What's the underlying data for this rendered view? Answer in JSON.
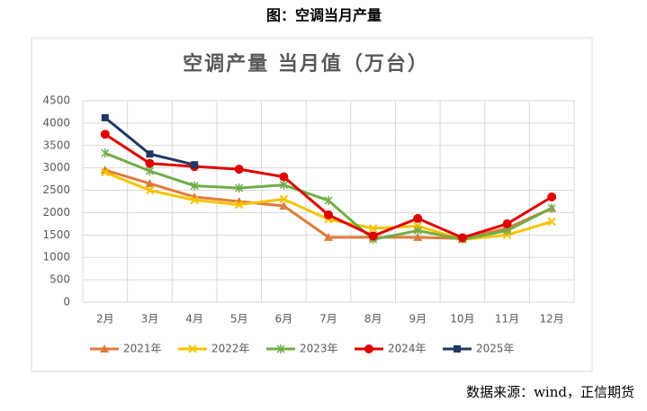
{
  "header": "图：空调当月产量",
  "source": "数据来源：wind，正信期货",
  "chart_data": {
    "type": "line",
    "title": "空调产量 当月值（万台）",
    "categories": [
      "2月",
      "3月",
      "4月",
      "5月",
      "6月",
      "7月",
      "8月",
      "9月",
      "10月",
      "11月",
      "12月"
    ],
    "ylim": [
      0,
      4500
    ],
    "yticks": [
      0,
      500,
      1000,
      1500,
      2000,
      2500,
      3000,
      3500,
      4000,
      4500
    ],
    "grid": true,
    "series": [
      {
        "name": "2021年",
        "color": "#e07b39",
        "marker": "triangle",
        "values": [
          2950,
          2650,
          2350,
          2250,
          2150,
          1450,
          1450,
          1450,
          1420,
          1650,
          2100
        ]
      },
      {
        "name": "2022年",
        "color": "#f5c400",
        "marker": "cross",
        "values": [
          2900,
          2500,
          2280,
          2180,
          2300,
          1850,
          1650,
          1700,
          1400,
          1500,
          1800
        ]
      },
      {
        "name": "2023年",
        "color": "#70ad47",
        "marker": "star",
        "values": [
          3330,
          2930,
          2600,
          2550,
          2620,
          2270,
          1400,
          1600,
          1400,
          1600,
          2100
        ]
      },
      {
        "name": "2024年",
        "color": "#e00000",
        "marker": "circle",
        "values": [
          3750,
          3100,
          3030,
          2970,
          2800,
          1950,
          1480,
          1870,
          1440,
          1750,
          2350
        ]
      },
      {
        "name": "2025年",
        "color": "#1f3864",
        "marker": "square",
        "values": [
          4120,
          3310,
          3070,
          null,
          null,
          null,
          null,
          null,
          null,
          null,
          null
        ]
      }
    ]
  }
}
